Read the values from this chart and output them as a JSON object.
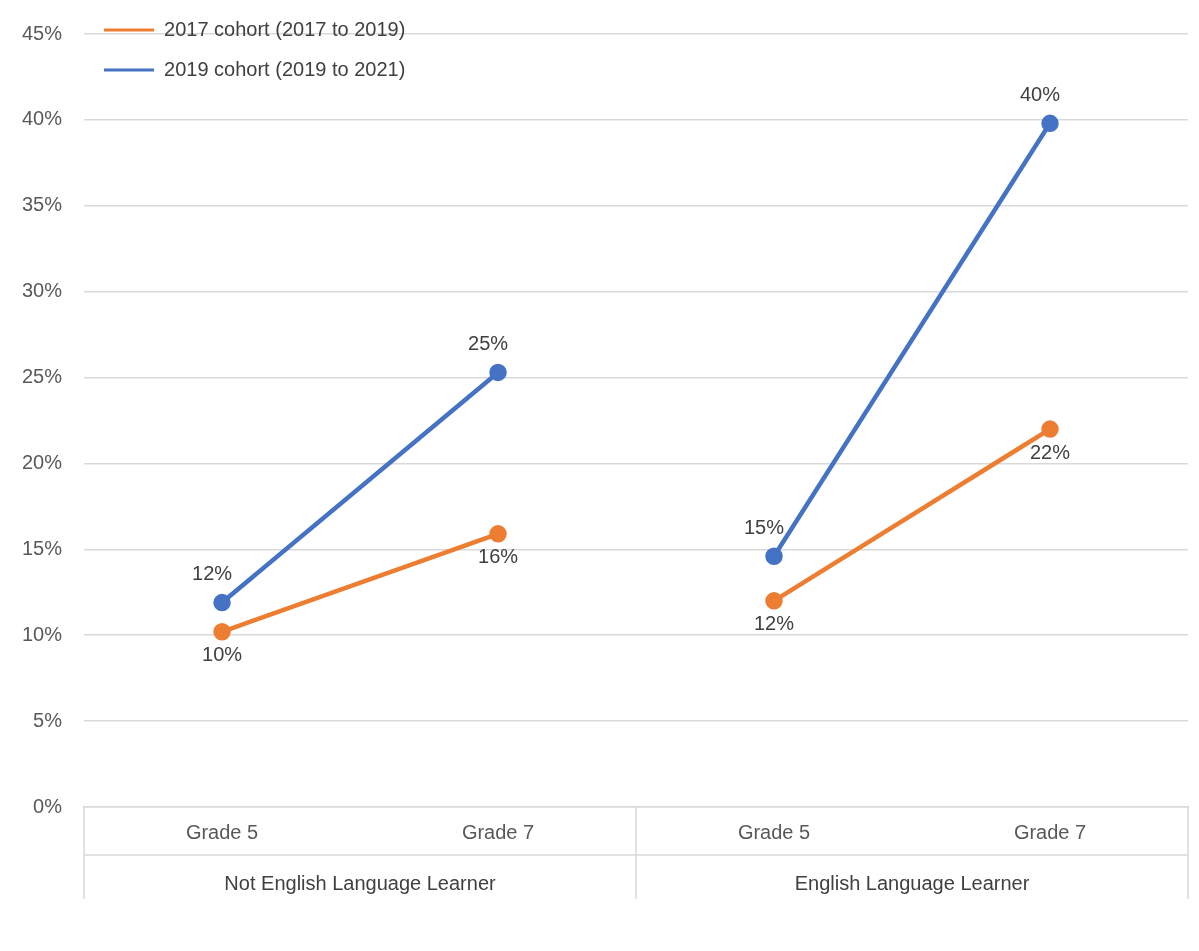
{
  "chart_data": {
    "type": "line",
    "categories": [
      "Grade 5",
      "Grade 7",
      "Grade 5",
      "Grade 7"
    ],
    "series": [
      {
        "name": "2017 cohort (2017 to 2019)",
        "color": "#ed7d31",
        "values": [
          10.2,
          15.9,
          12.0,
          22.0
        ],
        "value_labels": [
          "10%",
          "16%",
          "12%",
          "22%"
        ]
      },
      {
        "name": "2019 cohort (2019 to 2021)",
        "color": "#4472c4",
        "values": [
          11.9,
          25.3,
          14.6,
          39.8
        ],
        "value_labels": [
          "12%",
          "25%",
          "15%",
          "40%"
        ]
      }
    ],
    "ylim": [
      0,
      45
    ],
    "yticks": [
      {
        "value": 0,
        "label": "0%"
      },
      {
        "value": 5,
        "label": "5%"
      },
      {
        "value": 10,
        "label": "10%"
      },
      {
        "value": 15,
        "label": "15%"
      },
      {
        "value": 20,
        "label": "20%"
      },
      {
        "value": 25,
        "label": "25%"
      },
      {
        "value": 30,
        "label": "30%"
      },
      {
        "value": 35,
        "label": "35%"
      },
      {
        "value": 40,
        "label": "40%"
      },
      {
        "value": 45,
        "label": "45%"
      }
    ],
    "annotations": [
      "Not English Language Learner",
      "English Language Learner"
    ],
    "grid": "y",
    "legend": "top left",
    "marker": "circle",
    "line_style": "solid"
  }
}
